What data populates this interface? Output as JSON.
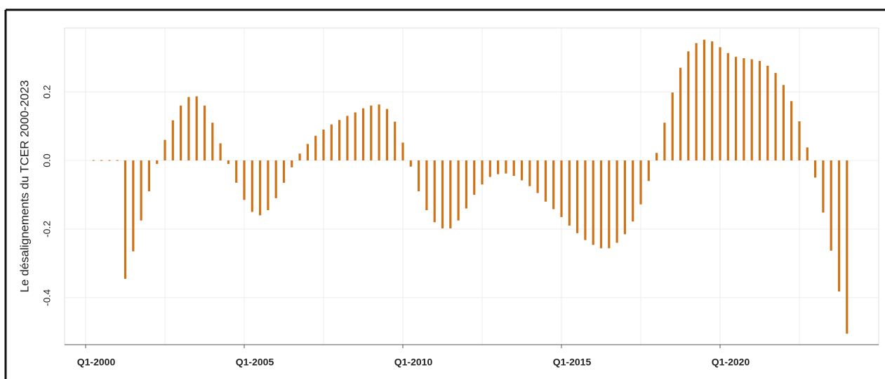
{
  "chart_data": {
    "type": "bar",
    "y_label": "Le désalignements du TCER 2000-2023",
    "color": "#cf7318",
    "categories": [
      "Q1-2000",
      null,
      null,
      null,
      null,
      null,
      null,
      null,
      null,
      null,
      null,
      null,
      null,
      null,
      null,
      null,
      null,
      null,
      null,
      null,
      "Q1-2005",
      null,
      null,
      null,
      null,
      null,
      null,
      null,
      null,
      null,
      null,
      null,
      null,
      null,
      null,
      null,
      null,
      null,
      null,
      null,
      "Q1-2010",
      null,
      null,
      null,
      null,
      null,
      null,
      null,
      null,
      null,
      null,
      null,
      null,
      null,
      null,
      null,
      null,
      null,
      null,
      null,
      "Q1-2015",
      null,
      null,
      null,
      null,
      null,
      null,
      null,
      null,
      null,
      null,
      null,
      null,
      null,
      null,
      null,
      null,
      null,
      null,
      null,
      "Q1-2020",
      null,
      null,
      null,
      null,
      null,
      null,
      null,
      null,
      null,
      null,
      null,
      null,
      null,
      null,
      null,
      null
    ],
    "values": [
      null,
      0,
      0,
      0,
      0,
      -0.345,
      -0.265,
      -0.175,
      -0.09,
      -0.01,
      0.06,
      0.117,
      0.16,
      0.185,
      0.187,
      0.16,
      0.11,
      0.05,
      -0.01,
      -0.065,
      -0.115,
      -0.15,
      -0.16,
      -0.145,
      -0.11,
      -0.065,
      -0.02,
      0.02,
      0.048,
      0.072,
      0.09,
      0.105,
      0.118,
      0.13,
      0.14,
      0.152,
      0.16,
      0.163,
      0.15,
      0.113,
      0.052,
      -0.018,
      -0.09,
      -0.145,
      -0.18,
      -0.198,
      -0.198,
      -0.175,
      -0.14,
      -0.1,
      -0.07,
      -0.048,
      -0.04,
      -0.038,
      -0.045,
      -0.058,
      -0.075,
      -0.095,
      -0.12,
      -0.142,
      -0.165,
      -0.19,
      -0.212,
      -0.232,
      -0.246,
      -0.256,
      -0.256,
      -0.24,
      -0.215,
      -0.178,
      -0.128,
      -0.06,
      0.022,
      0.11,
      0.198,
      0.27,
      0.318,
      0.342,
      0.352,
      0.347,
      0.33,
      0.313,
      0.302,
      0.298,
      0.295,
      0.29,
      0.276,
      0.255,
      0.22,
      0.173,
      0.114,
      0.038,
      -0.05,
      -0.152,
      -0.263,
      -0.382,
      -0.505
    ],
    "ylim": [
      -0.537,
      0.386
    ],
    "yticks": [
      -0.4,
      -0.2,
      {
        "value": 0,
        "label": "0.0"
      },
      0.2
    ],
    "grid": true
  }
}
